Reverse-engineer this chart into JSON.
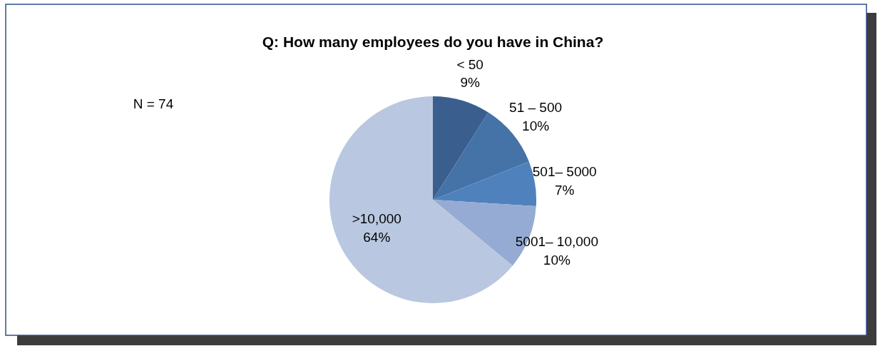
{
  "chart_data": {
    "type": "pie",
    "title": "Q: How many employees do you have in China?",
    "categories": [
      "< 50",
      "51 – 500",
      "501– 5000",
      "5001– 10,000",
      ">10,000"
    ],
    "values": [
      9,
      10,
      7,
      10,
      64
    ],
    "value_labels": [
      "9%",
      "10%",
      "7%",
      "10%",
      "64%"
    ],
    "colors": [
      "#3a5f8f",
      "#4573a7",
      "#4f81bd",
      "#95abd3",
      "#b9c7e0"
    ],
    "annotations": [
      "N = 74"
    ],
    "legend": false
  }
}
